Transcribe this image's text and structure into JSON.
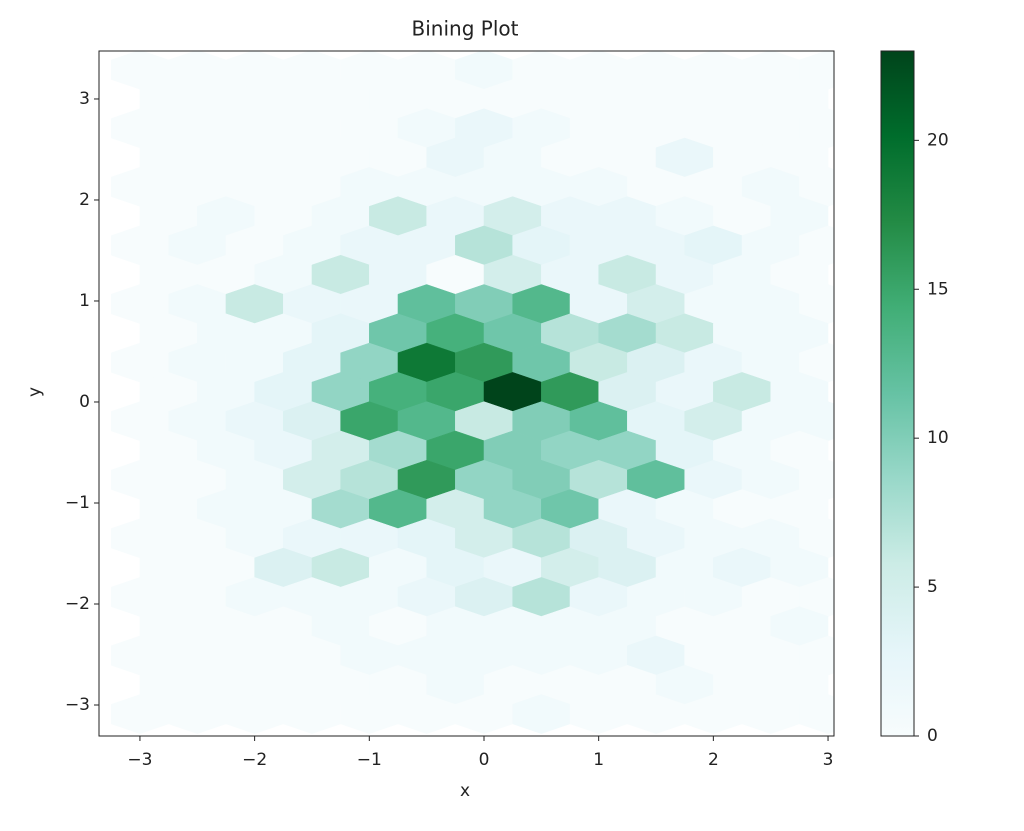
{
  "chart_data": {
    "type": "hexbin",
    "title": "Bining Plot",
    "xlabel": "x",
    "ylabel": "y",
    "xlim": [
      -3.357,
      3.052
    ],
    "ylim": [
      -3.307,
      3.475
    ],
    "xticks": [
      {
        "value": -3,
        "label": "−3"
      },
      {
        "value": -2,
        "label": "−2"
      },
      {
        "value": -1,
        "label": "−1"
      },
      0,
      1,
      2,
      3
    ],
    "yticks": [
      {
        "value": -3,
        "label": "−3"
      },
      {
        "value": -2,
        "label": "−2"
      },
      {
        "value": -1,
        "label": "−1"
      },
      0,
      1,
      2,
      3
    ],
    "hex_width": 0.5,
    "hex_row_spacing": 0.29,
    "colormap": [
      "#f7fcfd",
      "#e5f5f9",
      "#ccece6",
      "#99d8c9",
      "#66c2a4",
      "#41ae76",
      "#238b45",
      "#006d2c",
      "#00441b"
    ],
    "clim": [
      0,
      23
    ],
    "colorbar_ticks": [
      0,
      5,
      10,
      15,
      20
    ],
    "rows": [
      {
        "y": 3.29,
        "x": [
          -3,
          -2.5,
          -2,
          -1.5,
          -1,
          -0.5,
          0,
          0.5,
          1,
          1.5,
          2,
          2.5,
          3
        ],
        "values": [
          0,
          0,
          0,
          0,
          0,
          0,
          1,
          0,
          0,
          0,
          0,
          0,
          0
        ]
      },
      {
        "y": 3.0,
        "x": [
          -2.75,
          -2.25,
          -1.75,
          -1.25,
          -0.75,
          -0.25,
          0.25,
          0.75,
          1.25,
          1.75,
          2.25,
          2.75
        ],
        "values": [
          0,
          0,
          0,
          0,
          0,
          0,
          0,
          0,
          0,
          0,
          0,
          0
        ]
      },
      {
        "y": 2.71,
        "x": [
          -3,
          -2.5,
          -2,
          -1.5,
          -1,
          -0.5,
          0,
          0.5,
          1,
          1.5,
          2,
          2.5,
          3
        ],
        "values": [
          0,
          0,
          0,
          0,
          0,
          1,
          2,
          1,
          0,
          0,
          0,
          0,
          0
        ]
      },
      {
        "y": 2.42,
        "x": [
          -2.75,
          -2.25,
          -1.75,
          -1.25,
          -0.75,
          -0.25,
          0.25,
          0.75,
          1.25,
          1.75,
          2.25,
          2.75
        ],
        "values": [
          0,
          0,
          0,
          0,
          0,
          2,
          1,
          0,
          0,
          2,
          0,
          0
        ]
      },
      {
        "y": 2.13,
        "x": [
          -3,
          -2.5,
          -2,
          -1.5,
          -1,
          -0.5,
          0,
          0.5,
          1,
          1.5,
          2,
          2.5,
          3
        ],
        "values": [
          0,
          0,
          0,
          0,
          1,
          1,
          1,
          1,
          1,
          0,
          0,
          1,
          0
        ]
      },
      {
        "y": 1.84,
        "x": [
          -2.75,
          -2.25,
          -1.75,
          -1.25,
          -0.75,
          -0.25,
          0.25,
          0.75,
          1.25,
          1.75,
          2.25,
          2.75
        ],
        "values": [
          0,
          1,
          0,
          1,
          6,
          2,
          5,
          2,
          2,
          1,
          0,
          1
        ]
      },
      {
        "y": 1.55,
        "x": [
          -3,
          -2.5,
          -2,
          -1.5,
          -1,
          -0.5,
          0,
          0.5,
          1,
          1.5,
          2,
          2.5,
          3
        ],
        "values": [
          0,
          1,
          0,
          1,
          2,
          2,
          7,
          3,
          2,
          2,
          3,
          1,
          0
        ]
      },
      {
        "y": 1.26,
        "x": [
          -2.75,
          -2.25,
          -1.75,
          -1.25,
          -0.75,
          -0.25,
          0.25,
          0.75,
          1.25,
          1.75,
          2.25,
          2.75
        ],
        "values": [
          0,
          0,
          1,
          6,
          2,
          0,
          5,
          2,
          6,
          2,
          1,
          0
        ]
      },
      {
        "y": 0.97,
        "x": [
          -3,
          -2.5,
          -2,
          -1.5,
          -1,
          -0.5,
          0,
          0.5,
          1,
          1.5,
          2,
          2.5,
          3
        ],
        "values": [
          0,
          1,
          6,
          2,
          2,
          12,
          10,
          13,
          2,
          5,
          1,
          1,
          0
        ]
      },
      {
        "y": 0.68,
        "x": [
          -2.75,
          -2.25,
          -1.75,
          -1.25,
          -0.75,
          -0.25,
          0.25,
          0.75,
          1.25,
          1.75,
          2.25,
          2.75
        ],
        "values": [
          0,
          1,
          1,
          3,
          11,
          14,
          11,
          7,
          8,
          6,
          1,
          1
        ]
      },
      {
        "y": 0.39,
        "x": [
          -3,
          -2.5,
          -2,
          -1.5,
          -1,
          -0.5,
          0,
          0.5,
          1,
          1.5,
          2,
          2.5,
          3
        ],
        "values": [
          0,
          1,
          1,
          3,
          9,
          19,
          16,
          11,
          6,
          4,
          2,
          1,
          0
        ]
      },
      {
        "y": 0.1,
        "x": [
          -2.75,
          -2.25,
          -1.75,
          -1.25,
          -0.75,
          -0.25,
          0.25,
          0.75,
          1.25,
          1.75,
          2.25,
          2.75
        ],
        "values": [
          0,
          1,
          3,
          9,
          14,
          15,
          23,
          16,
          4,
          2,
          6,
          1
        ]
      },
      {
        "y": -0.19,
        "x": [
          -3,
          -2.5,
          -2,
          -1.5,
          -1,
          -0.5,
          0,
          0.5,
          1,
          1.5,
          2,
          2.5,
          3
        ],
        "values": [
          0,
          1,
          2,
          4,
          15,
          13,
          6,
          10,
          12,
          3,
          5,
          1,
          1
        ]
      },
      {
        "y": -0.48,
        "x": [
          -2.75,
          -2.25,
          -1.75,
          -1.25,
          -0.75,
          -0.25,
          0.25,
          0.75,
          1.25,
          1.75,
          2.25,
          2.75
        ],
        "values": [
          0,
          1,
          2,
          5,
          8,
          15,
          10,
          9,
          9,
          3,
          1,
          0
        ]
      },
      {
        "y": -0.77,
        "x": [
          -3,
          -2.5,
          -2,
          -1.5,
          -1,
          -0.5,
          0,
          0.5,
          1,
          1.5,
          2,
          2.5,
          3
        ],
        "values": [
          0,
          0,
          1,
          5,
          7,
          16,
          9,
          10,
          7,
          12,
          2,
          1,
          0
        ]
      },
      {
        "y": -1.06,
        "x": [
          -2.75,
          -2.25,
          -1.75,
          -1.25,
          -0.75,
          -0.25,
          0.25,
          0.75,
          1.25,
          1.75,
          2.25,
          2.75
        ],
        "values": [
          0,
          1,
          1,
          8,
          13,
          5,
          9,
          11,
          2,
          1,
          0,
          0
        ]
      },
      {
        "y": -1.35,
        "x": [
          -3,
          -2.5,
          -2,
          -1.5,
          -1,
          -0.5,
          0,
          0.5,
          1,
          1.5,
          2,
          2.5,
          3
        ],
        "values": [
          0,
          0,
          1,
          2,
          2,
          3,
          5,
          7,
          4,
          2,
          1,
          1,
          0
        ]
      },
      {
        "y": -1.64,
        "x": [
          -2.75,
          -2.25,
          -1.75,
          -1.25,
          -0.75,
          -0.25,
          0.25,
          0.75,
          1.25,
          1.75,
          2.25,
          2.75
        ],
        "values": [
          0,
          0,
          4,
          6,
          1,
          3,
          2,
          5,
          4,
          1,
          2,
          1
        ]
      },
      {
        "y": -1.93,
        "x": [
          -3,
          -2.5,
          -2,
          -1.5,
          -1,
          -0.5,
          0,
          0.5,
          1,
          1.5,
          2,
          2.5,
          3
        ],
        "values": [
          0,
          0,
          1,
          1,
          1,
          2,
          4,
          7,
          2,
          1,
          1,
          0,
          0
        ]
      },
      {
        "y": -2.22,
        "x": [
          -2.75,
          -2.25,
          -1.75,
          -1.25,
          -0.75,
          -0.25,
          0.25,
          0.75,
          1.25,
          1.75,
          2.25,
          2.75
        ],
        "values": [
          0,
          0,
          0,
          1,
          0,
          1,
          1,
          1,
          1,
          0,
          0,
          1
        ]
      },
      {
        "y": -2.51,
        "x": [
          -3,
          -2.5,
          -2,
          -1.5,
          -1,
          -0.5,
          0,
          0.5,
          1,
          1.5,
          2,
          2.5,
          3
        ],
        "values": [
          0,
          0,
          0,
          0,
          1,
          1,
          1,
          1,
          1,
          2,
          0,
          0,
          0
        ]
      },
      {
        "y": -2.8,
        "x": [
          -2.75,
          -2.25,
          -1.75,
          -1.25,
          -0.75,
          -0.25,
          0.25,
          0.75,
          1.25,
          1.75,
          2.25,
          2.75
        ],
        "values": [
          0,
          0,
          0,
          0,
          0,
          1,
          0,
          0,
          0,
          1,
          0,
          0
        ]
      },
      {
        "y": -3.09,
        "x": [
          -3,
          -2.5,
          -2,
          -1.5,
          -1,
          -0.5,
          0,
          0.5,
          1,
          1.5,
          2,
          2.5,
          3
        ],
        "values": [
          0,
          0,
          0,
          0,
          0,
          0,
          0,
          1,
          0,
          0,
          0,
          0,
          0
        ]
      }
    ]
  }
}
